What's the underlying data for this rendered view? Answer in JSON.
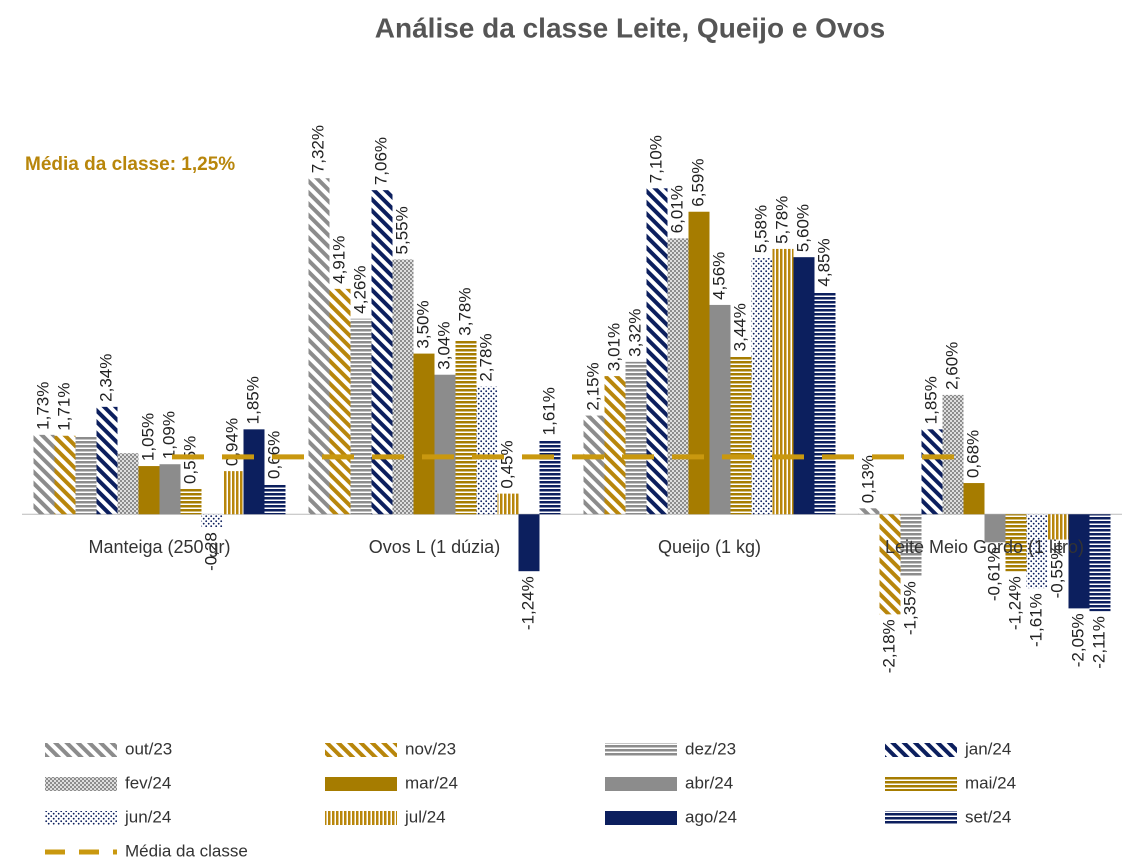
{
  "chart_data": {
    "type": "bar",
    "title": "Análise da classe Leite, Queijo e Ovos",
    "categories": [
      "Manteiga (250 gr)",
      "Ovos L  (1 dúzia)",
      "Queijo (1 kg)",
      "Leite Meio Gordo (1 litro)"
    ],
    "ylim": [
      -3,
      8
    ],
    "series": [
      {
        "name": "out/23",
        "color": "#8c8c8c",
        "pattern": "diagonal",
        "values": [
          1.73,
          7.32,
          2.15,
          0.13
        ],
        "value_labels": [
          "1,73%",
          "7,32%",
          "2,15%",
          "0,13%"
        ]
      },
      {
        "name": "nov/23",
        "color": "#b8860b",
        "pattern": "diagonal",
        "values": [
          1.71,
          4.91,
          3.01,
          -2.18
        ],
        "value_labels": [
          "1,71%",
          "4,91%",
          "3,01%",
          "-2,18%"
        ]
      },
      {
        "name": "dez/23",
        "color": "#8c8c8c",
        "pattern": "hlines",
        "values": [
          1.71,
          4.26,
          3.32,
          -1.35
        ],
        "value_labels": [
          null,
          "4,26%",
          "3,32%",
          "-1,35%"
        ]
      },
      {
        "name": "jan/24",
        "color": "#0c1f5e",
        "pattern": "diagonal",
        "values": [
          2.34,
          7.06,
          7.1,
          1.85
        ],
        "value_labels": [
          "2,34%",
          "7,06%",
          "7,10%",
          "1,85%"
        ]
      },
      {
        "name": "fev/24",
        "color": "#8c8c8c",
        "pattern": "checker",
        "values": [
          1.33,
          5.55,
          6.01,
          2.6
        ],
        "value_labels": [
          null,
          "5,55%",
          "6,01%",
          "2,60%"
        ]
      },
      {
        "name": "mar/24",
        "color": "#a67c00",
        "pattern": "solid",
        "values": [
          1.05,
          3.5,
          6.59,
          0.68
        ],
        "value_labels": [
          "1,05%",
          "3,50%",
          "6,59%",
          "0,68%"
        ]
      },
      {
        "name": "abr/24",
        "color": "#8c8c8c",
        "pattern": "solid",
        "values": [
          1.09,
          3.04,
          4.56,
          -0.61
        ],
        "value_labels": [
          "1,09%",
          "3,04%",
          "4,56%",
          "-0,61%"
        ]
      },
      {
        "name": "mai/24",
        "color": "#a67c00",
        "pattern": "hlines",
        "values": [
          0.55,
          3.78,
          3.44,
          -1.24
        ],
        "value_labels": [
          "0,55%",
          "3,78%",
          "3,44%",
          "-1,24%"
        ]
      },
      {
        "name": "jun/24",
        "color": "#0c1f5e",
        "pattern": "dots",
        "values": [
          -0.28,
          2.78,
          5.58,
          -1.61
        ],
        "value_labels": [
          "-0,28",
          "2,78%",
          "5,58%",
          "-1,61%"
        ]
      },
      {
        "name": "jul/24",
        "color": "#b8860b",
        "pattern": "vlines",
        "values": [
          0.94,
          0.45,
          5.78,
          -0.55
        ],
        "value_labels": [
          "0,94%",
          "0,45%",
          "5,78%",
          "-0,55%"
        ]
      },
      {
        "name": "ago/24",
        "color": "#0c1f5e",
        "pattern": "solid",
        "values": [
          1.85,
          -1.24,
          5.6,
          -2.05
        ],
        "value_labels": [
          "1,85%",
          "-1,24%",
          "5,60%",
          "-2,05%"
        ]
      },
      {
        "name": "set/24",
        "color": "#0c1f5e",
        "pattern": "hlines",
        "values": [
          0.66,
          1.61,
          4.85,
          -2.11
        ],
        "value_labels": [
          "0,66%",
          "1,61%",
          "4,85%",
          "-2,11%"
        ]
      }
    ],
    "average": {
      "value": 1.25,
      "label": "Média da classe: 1,25%",
      "name": "Média da classe",
      "color": "#c9980f"
    }
  }
}
